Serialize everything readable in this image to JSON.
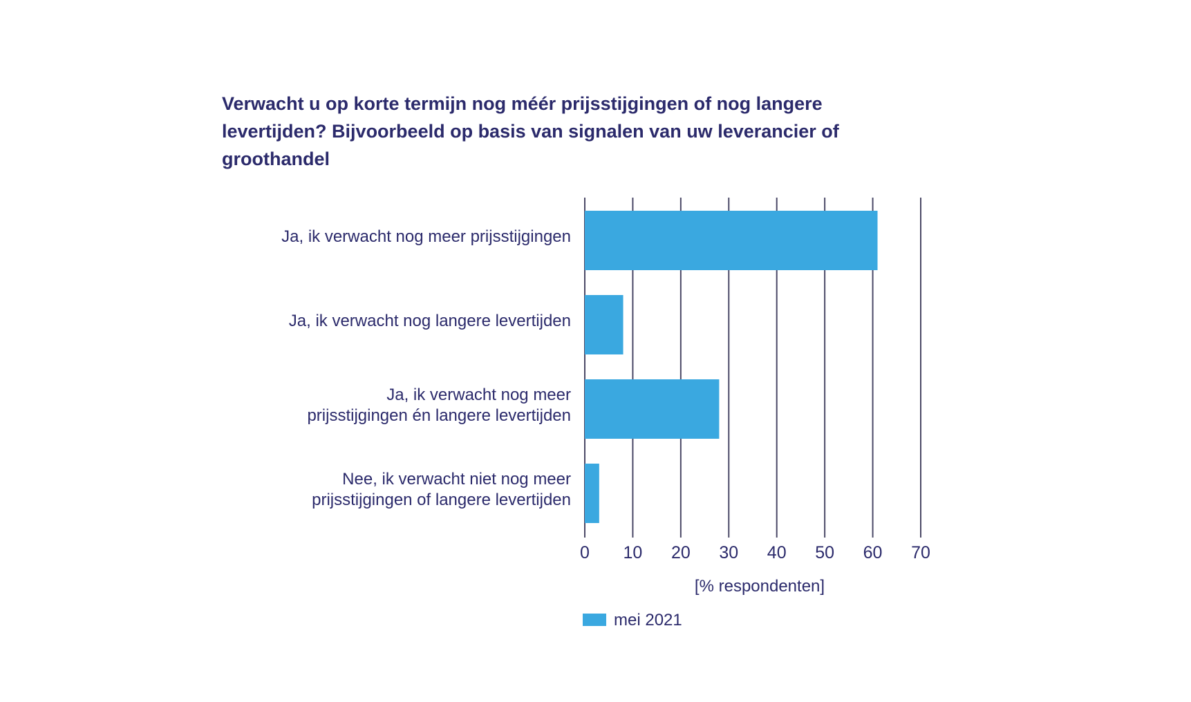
{
  "chart_data": {
    "type": "bar",
    "orientation": "horizontal",
    "title": "Verwacht u op korte termijn nog méér prijsstijgingen of nog langere levertijden? Bijvoorbeeld op basis van signalen van uw leverancier of groothandel",
    "categories": [
      [
        "Ja, ik verwacht nog meer prijsstijgingen"
      ],
      [
        "Ja, ik verwacht nog langere levertijden"
      ],
      [
        "Ja, ik verwacht nog meer",
        "prijsstijgingen én langere levertijden"
      ],
      [
        "Nee, ik verwacht niet nog meer",
        "prijsstijgingen of langere levertijden"
      ]
    ],
    "series": [
      {
        "name": "mei 2021",
        "color": "#3aa8e0",
        "values": [
          61,
          8,
          28,
          3
        ]
      }
    ],
    "xlabel": "[% respondenten]",
    "xlim": [
      0,
      70
    ],
    "xticks": [
      0,
      10,
      20,
      30,
      40,
      50,
      60,
      70
    ],
    "grid": true,
    "legend": "bottom-left",
    "text_color": "#2b2a6b",
    "grid_color": "#4a4866"
  }
}
